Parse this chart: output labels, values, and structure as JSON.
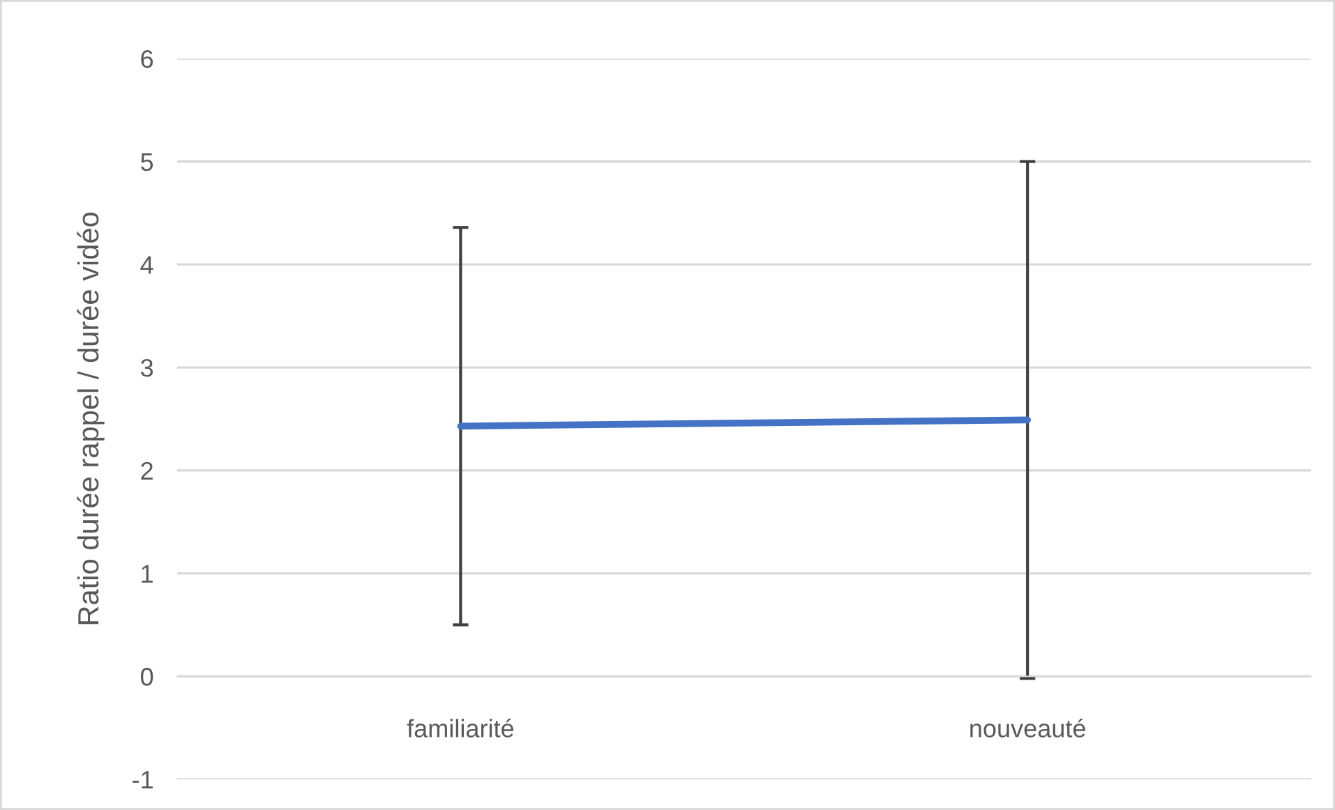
{
  "chart_data": {
    "type": "line",
    "ylabel": "Ratio durée rappel / durée vidéo",
    "categories": [
      "familiarité",
      "nouveauté"
    ],
    "series": [
      {
        "color": "#4472c4",
        "values": [
          2.43,
          2.49
        ],
        "errors": [
          [
            0.5,
            4.36
          ],
          [
            -0.02,
            5.0
          ]
        ]
      }
    ],
    "ylim": [
      -1,
      6
    ],
    "yticks": [
      -1,
      0,
      1,
      2,
      3,
      4,
      5,
      6
    ],
    "grid": "y",
    "marker": "none",
    "line_style": "solid"
  }
}
